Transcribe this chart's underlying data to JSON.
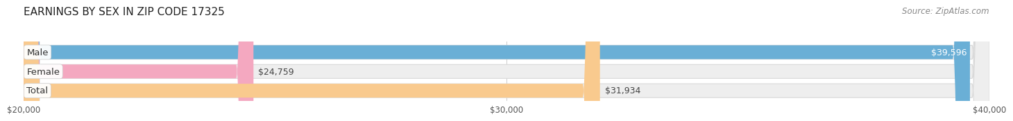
{
  "title": "EARNINGS BY SEX IN ZIP CODE 17325",
  "source": "Source: ZipAtlas.com",
  "categories": [
    "Male",
    "Female",
    "Total"
  ],
  "values": [
    39596,
    24759,
    31934
  ],
  "labels": [
    "$39,596",
    "$24,759",
    "$31,934"
  ],
  "bar_colors": [
    "#6aafd6",
    "#f4a8c0",
    "#f9ca8e"
  ],
  "track_color": "#eeeeee",
  "track_edge_color": "#d8d8d8",
  "xmin": 20000,
  "xmax": 40000,
  "xticks": [
    20000,
    30000,
    40000
  ],
  "xtick_labels": [
    "$20,000",
    "$30,000",
    "$40,000"
  ],
  "background_color": "#ffffff",
  "bar_height": 0.72,
  "bar_gap": 0.1,
  "title_fontsize": 11,
  "source_fontsize": 8.5,
  "label_fontsize": 9,
  "category_fontsize": 9.5,
  "tick_fontsize": 8.5,
  "grid_color": "#cccccc",
  "grid_lw": 0.7
}
